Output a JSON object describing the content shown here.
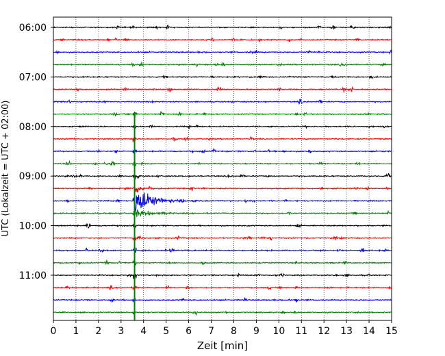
{
  "chart_data": {
    "type": "line",
    "title": "",
    "xlabel": "Zeit  [min]",
    "ylabel": "UTC (Lokalzeit = UTC + 02:00)",
    "xlim": [
      0,
      15
    ],
    "x_ticks": [
      0,
      1,
      2,
      3,
      4,
      5,
      6,
      7,
      8,
      9,
      10,
      11,
      12,
      13,
      14,
      15
    ],
    "y_ticks": [
      "06:00",
      "07:00",
      "08:00",
      "09:00",
      "10:00",
      "11:00"
    ],
    "trace_interval_minutes": 15,
    "first_trace_time": "06:00",
    "trace_count": 24,
    "trace_colors": [
      "#000000",
      "#ff0000",
      "#0000ff",
      "#008000"
    ],
    "grid": "vertical dotted lines at each minute",
    "event": {
      "x_min": 3.6,
      "onset_trace_index": 7,
      "peak_trace_index": 15,
      "last_trace_index": 23,
      "color_note": "large amplitude earthquake signal spanning multiple traces"
    }
  }
}
